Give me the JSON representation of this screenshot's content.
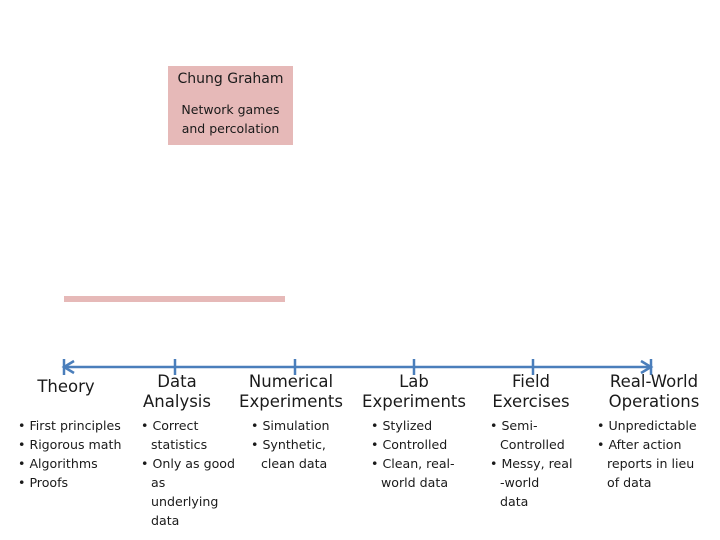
{
  "card": {
    "name": "Chung Graham",
    "topic_line1": "Network games",
    "topic_line2": "and percolation"
  },
  "stages": [
    {
      "label_lines": [
        "Theory"
      ],
      "bullets": [
        "First principles",
        "Rigorous math",
        "Algorithms",
        "Proofs"
      ]
    },
    {
      "label_lines": [
        "Data",
        "Analysis"
      ],
      "bullets": [
        "Correct\nstatistics",
        "Only as good as\nunderlying\ndata"
      ]
    },
    {
      "label_lines": [
        "Numerical",
        "Experiments"
      ],
      "bullets": [
        "Simulation",
        "Synthetic,\nclean data"
      ]
    },
    {
      "label_lines": [
        "Lab",
        "Experiments"
      ],
      "bullets": [
        "Stylized",
        "Controlled",
        "Clean, real-\nworld data"
      ]
    },
    {
      "label_lines": [
        "Field",
        "Exercises"
      ],
      "bullets": [
        "Semi-\nControlled",
        "Messy, real\n-world\ndata"
      ]
    },
    {
      "label_lines": [
        "Real-World",
        "Operations"
      ],
      "bullets": [
        "Unpredictable",
        "After action\nreports in lieu\nof data"
      ]
    }
  ],
  "colors": {
    "axis": "#4a7ebb",
    "card": "#e6b9b8"
  }
}
